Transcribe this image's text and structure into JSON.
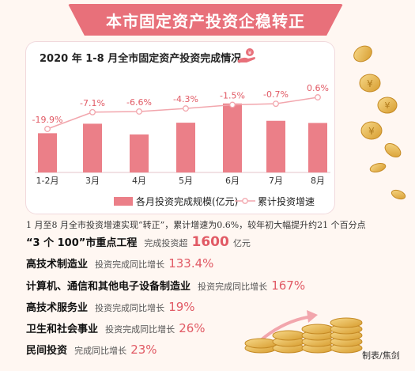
{
  "header": {
    "title": "本市固定资产投资企稳转正"
  },
  "chart_data": {
    "type": "bar",
    "title": "2020 年 1-8 月全市固定资产投资完成情况",
    "categories": [
      "1-2月",
      "3月",
      "4月",
      "5月",
      "6月",
      "7月",
      "8月"
    ],
    "series": [
      {
        "name": "各月投资完成规模(亿元)",
        "type": "bar",
        "values": [
          310,
          385,
          300,
          393,
          545,
          408,
          391
        ]
      },
      {
        "name": "累计投资增速",
        "type": "line",
        "values": [
          -19.9,
          -7.1,
          -6.6,
          -4.3,
          -1.5,
          -0.7,
          0.6
        ]
      }
    ],
    "point_labels": [
      "-19.9%",
      "-7.1%",
      "-6.6%",
      "-4.3%",
      "-1.5%",
      "-0.7%",
      "0.6%"
    ],
    "xlabel": "",
    "ylabel": "",
    "grid": false,
    "legend": "bottom",
    "colors": {
      "bar": "#eb7f88",
      "line": "#f2a6ad",
      "label": "#e15a65"
    }
  },
  "summary": "1 月至8 月全市投资增速实现“转正”，累计增速为0.6%，较年初大幅提升约21 个百分点",
  "stats": [
    {
      "head": "“3 个 100”市重点工程",
      "desc": "完成投资超",
      "value": "1600",
      "unit": "亿元"
    },
    {
      "head": "高技术制造业",
      "desc": "投资完成同比增长",
      "value": "133.4%"
    },
    {
      "head": "计算机、通信和其他电子设备制造业",
      "desc": "投资完成同比增长",
      "value": "167%"
    },
    {
      "head": "高技术服务业",
      "desc": "投资完成同比增长",
      "value": "19%"
    },
    {
      "head": "卫生和社会事业",
      "desc": "投资完成同比增长",
      "value": "26%"
    },
    {
      "head": "民间投资",
      "desc": "完成同比增长",
      "value": "23%"
    }
  ],
  "credit": "制表/焦剑",
  "icons": [
    "hand-coin-icon",
    "coin-stack-icon",
    "falling-coins-icon"
  ]
}
